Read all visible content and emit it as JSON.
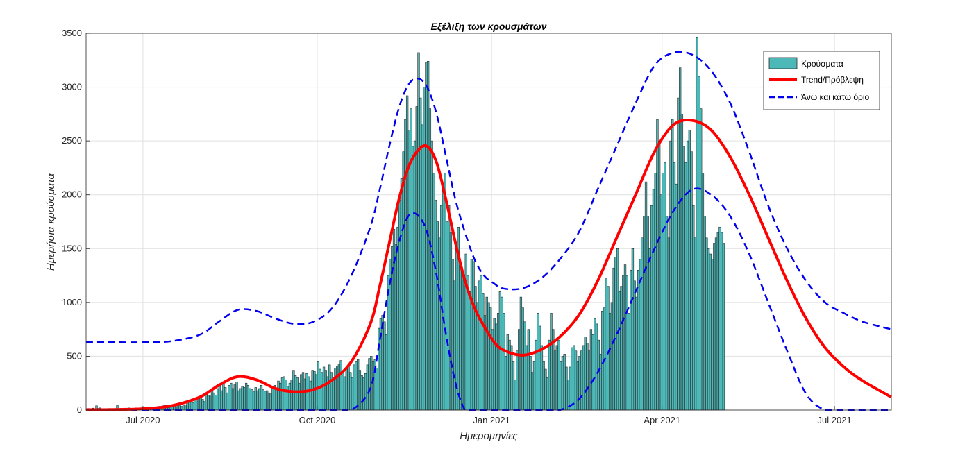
{
  "chart_data": {
    "type": "bar",
    "title": "Εξέλιξη των κρουσμάτων",
    "xlabel": "Ημερομηνίες",
    "ylabel": "Ημερήσια κρούσματα",
    "ylim": [
      0,
      3500
    ],
    "yticks": [
      0,
      500,
      1000,
      1500,
      2000,
      2500,
      3000,
      3500
    ],
    "x_range_days": [
      0,
      425
    ],
    "x_start_date": "2020-06-01",
    "xticks": [
      {
        "day": 30,
        "label": "Jul 2020"
      },
      {
        "day": 122,
        "label": "Oct 2020"
      },
      {
        "day": 214,
        "label": "Jan 2021"
      },
      {
        "day": 304,
        "label": "Apr 2021"
      },
      {
        "day": 395,
        "label": "Jul 2021"
      }
    ],
    "grid": true,
    "legend_position": "top-right",
    "series": [
      {
        "name": "Κρούσματα",
        "kind": "bar",
        "color": "#4db8b8",
        "edge_color": "#2b2b2b",
        "bar_days_start": 0,
        "values": [
          10,
          15,
          12,
          18,
          14,
          40,
          16,
          20,
          13,
          10,
          8,
          12,
          15,
          9,
          11,
          14,
          42,
          12,
          16,
          14,
          18,
          10,
          20,
          14,
          12,
          16,
          20,
          9,
          15,
          18,
          22,
          18,
          15,
          28,
          22,
          30,
          18,
          20,
          35,
          26,
          40,
          45,
          30,
          20,
          25,
          35,
          40,
          32,
          55,
          42,
          35,
          50,
          40,
          60,
          75,
          90,
          70,
          110,
          85,
          120,
          130,
          100,
          80,
          150,
          140,
          130,
          180,
          160,
          140,
          200,
          220,
          180,
          240,
          210,
          160,
          230,
          250,
          200,
          240,
          260,
          180,
          200,
          220,
          210,
          250,
          230,
          200,
          190,
          170,
          210,
          180,
          200,
          230,
          190,
          175,
          180,
          160,
          150,
          210,
          230,
          190,
          270,
          250,
          300,
          310,
          280,
          220,
          250,
          280,
          370,
          320,
          300,
          250,
          330,
          350,
          290,
          340,
          310,
          270,
          370,
          360,
          330,
          450,
          380,
          350,
          400,
          370,
          310,
          420,
          350,
          300,
          390,
          410,
          430,
          460,
          350,
          310,
          380,
          420,
          350,
          300,
          420,
          450,
          470,
          370,
          320,
          300,
          340,
          420,
          480,
          500,
          450,
          470,
          390,
          760,
          850,
          880,
          820,
          700,
          1250,
          1400,
          1520,
          1680,
          1540,
          1700,
          1950,
          2150,
          2400,
          2700,
          2920,
          2600,
          2800,
          2450,
          2500,
          2820,
          3320,
          2900,
          2650,
          3000,
          3230,
          3240,
          2800,
          2500,
          2200,
          1950,
          1750,
          1600,
          1900,
          2100,
          2200,
          1750,
          1900,
          1650,
          1400,
          1200,
          1500,
          1700,
          1350,
          1300,
          1200,
          1450,
          1250,
          1100,
          1400,
          1380,
          1150,
          1000,
          1200,
          1250,
          1080,
          880,
          1050,
          1000,
          950,
          750,
          850,
          800,
          900,
          1100,
          1050,
          900,
          500,
          700,
          650,
          600,
          450,
          280,
          550,
          750,
          1050,
          950,
          820,
          600,
          750,
          500,
          350,
          450,
          650,
          900,
          780,
          600,
          450,
          380,
          300,
          650,
          900,
          750,
          550,
          600,
          650,
          450,
          500,
          520,
          400,
          280,
          400,
          580,
          600,
          550,
          450,
          500,
          550,
          600,
          680,
          620,
          550,
          750,
          700,
          850,
          800,
          650,
          520,
          920,
          950,
          1220,
          1150,
          900,
          1000,
          1320,
          1420,
          1500,
          1100,
          1150,
          1250,
          1350,
          1250,
          900,
          1300,
          1500,
          1200,
          1050,
          1300,
          1400,
          1600,
          1800,
          2120,
          1800,
          1500,
          1900,
          2050,
          2200,
          2700,
          2500,
          2000,
          2200,
          2300,
          1800,
          1600,
          2500,
          2700,
          2300,
          2100,
          2900,
          3180,
          2750,
          2450,
          2300,
          2500,
          2600,
          2400,
          1900,
          1600,
          3460,
          3100,
          2800,
          2200,
          1800,
          1600,
          1500,
          1450,
          1400,
          1550,
          1600,
          1650,
          1700,
          1650,
          1550
        ]
      },
      {
        "name": "Trend/Πρόβλεψη",
        "kind": "line",
        "color": "#ff0000",
        "x": [
          0,
          15,
          30,
          45,
          60,
          70,
          80,
          90,
          100,
          110,
          120,
          130,
          140,
          150,
          155,
          160,
          165,
          170,
          175,
          180,
          185,
          190,
          195,
          200,
          205,
          210,
          215,
          220,
          230,
          240,
          250,
          260,
          270,
          280,
          290,
          300,
          310,
          320,
          330,
          340,
          350,
          360,
          370,
          380,
          390,
          400,
          410,
          425
        ],
        "values": [
          3,
          5,
          12,
          40,
          120,
          230,
          310,
          280,
          200,
          170,
          190,
          280,
          450,
          800,
          1150,
          1550,
          1950,
          2250,
          2410,
          2450,
          2300,
          1950,
          1550,
          1200,
          950,
          780,
          640,
          560,
          510,
          560,
          680,
          880,
          1200,
          1600,
          2000,
          2400,
          2650,
          2690,
          2600,
          2350,
          2000,
          1600,
          1200,
          850,
          580,
          400,
          270,
          120
        ]
      },
      {
        "name": "Άνω και κάτω όριο",
        "kind": "line-dashed",
        "color": "#0000ee",
        "upper": {
          "x": [
            0,
            15,
            30,
            45,
            60,
            70,
            80,
            90,
            100,
            110,
            120,
            130,
            140,
            150,
            155,
            160,
            165,
            170,
            175,
            180,
            185,
            190,
            195,
            200,
            205,
            210,
            215,
            220,
            230,
            240,
            250,
            260,
            270,
            280,
            290,
            300,
            310,
            320,
            330,
            340,
            350,
            360,
            370,
            380,
            390,
            400,
            410,
            425
          ],
          "values": [
            630,
            630,
            630,
            640,
            700,
            820,
            930,
            920,
            850,
            800,
            820,
            950,
            1250,
            1700,
            2050,
            2450,
            2800,
            3020,
            3080,
            3000,
            2750,
            2350,
            1950,
            1650,
            1400,
            1250,
            1180,
            1130,
            1130,
            1220,
            1400,
            1650,
            2050,
            2450,
            2850,
            3200,
            3320,
            3300,
            3150,
            2850,
            2400,
            1900,
            1500,
            1200,
            1000,
            900,
            820,
            750
          ]
        },
        "lower": {
          "x": [
            0,
            15,
            30,
            45,
            60,
            70,
            80,
            90,
            100,
            110,
            120,
            130,
            140,
            150,
            155,
            160,
            165,
            170,
            175,
            180,
            185,
            190,
            195,
            200,
            205,
            210,
            215,
            220,
            230,
            240,
            250,
            260,
            270,
            280,
            290,
            300,
            310,
            320,
            330,
            340,
            350,
            360,
            370,
            380,
            390,
            400,
            410,
            425
          ],
          "values": [
            0,
            0,
            0,
            0,
            0,
            0,
            0,
            0,
            0,
            0,
            0,
            0,
            0,
            200,
            650,
            1150,
            1550,
            1800,
            1810,
            1650,
            1250,
            700,
            250,
            0,
            0,
            0,
            0,
            0,
            0,
            0,
            0,
            100,
            350,
            700,
            1100,
            1500,
            1850,
            2050,
            2000,
            1800,
            1450,
            1000,
            550,
            150,
            0,
            0,
            0,
            0
          ]
        }
      }
    ]
  }
}
